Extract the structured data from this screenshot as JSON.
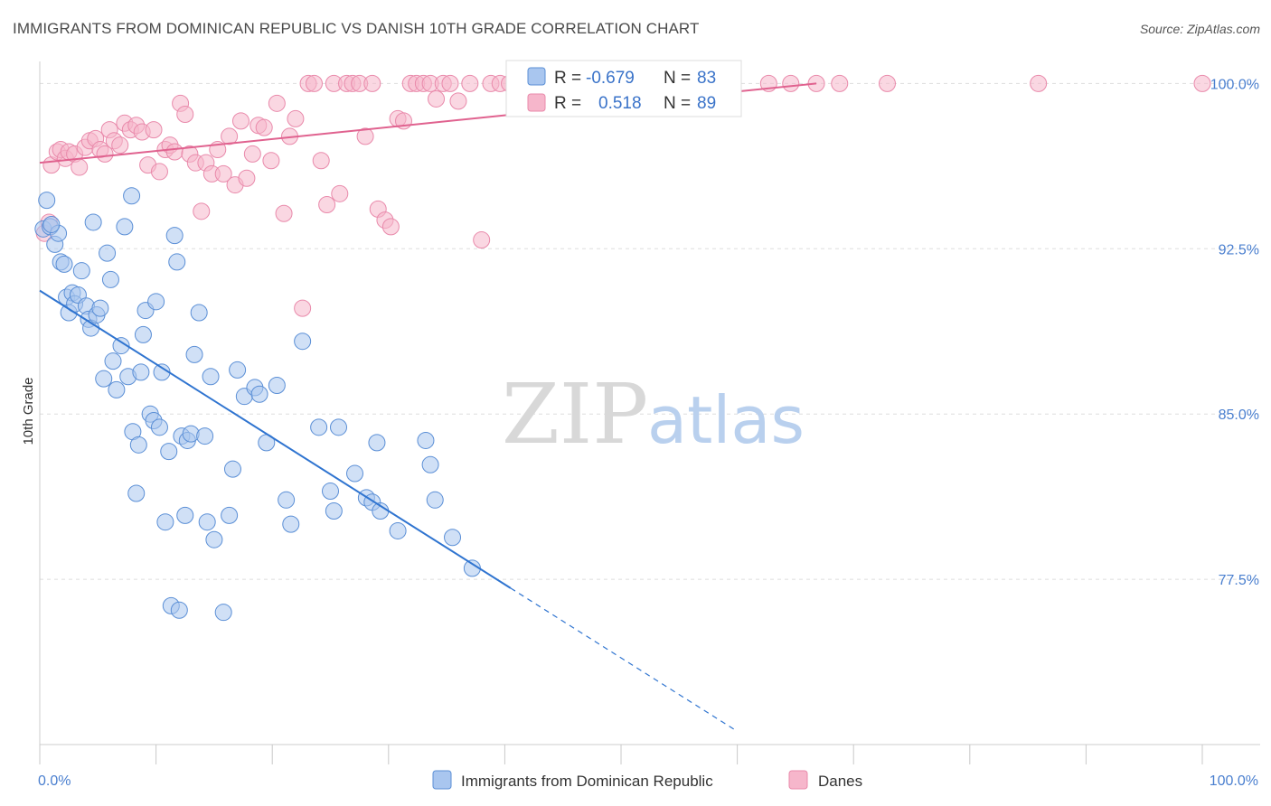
{
  "title": "IMMIGRANTS FROM DOMINICAN REPUBLIC VS DANISH 10TH GRADE CORRELATION CHART",
  "source": "Source: ZipAtlas.com",
  "watermark": {
    "zip": "ZIP",
    "atlas": "atlas"
  },
  "colors": {
    "blue_fill": "#a9c6ef",
    "blue_stroke": "#5b8fd6",
    "blue_line": "#2f74d0",
    "pink_fill": "#f6b6cb",
    "pink_stroke": "#e98aab",
    "pink_line": "#e0628f",
    "grid": "#dddddd",
    "tick_text": "#4a7fcf"
  },
  "legend": {
    "row1": {
      "r_label": "R =",
      "r_value": "-0.679",
      "n_label": "N =",
      "n_value": "83"
    },
    "row2": {
      "r_label": "R =",
      "r_value": "0.518",
      "n_label": "N =",
      "n_value": "89"
    }
  },
  "bottom_legend": [
    "Immigrants from Dominican Republic",
    "Danes"
  ],
  "chart_data": {
    "type": "scatter",
    "title": "IMMIGRANTS FROM DOMINICAN REPUBLIC VS DANISH 10TH GRADE CORRELATION CHART",
    "xlabel": "",
    "ylabel": "10th Grade",
    "x_tick_labels": [
      "0.0%",
      "100.0%"
    ],
    "y_tick_labels": [
      "100.0%",
      "92.5%",
      "85.0%",
      "77.5%"
    ],
    "y_ticks": [
      100.0,
      92.5,
      85.0,
      77.5
    ],
    "xlim": [
      0,
      100
    ],
    "ylim": [
      70.0,
      101.0
    ],
    "grid": true,
    "legend_position": "top-center",
    "series": [
      {
        "name": "Immigrants from Dominican Republic",
        "color": "#a9c6ef",
        "R": -0.679,
        "N": 83,
        "trend": {
          "x": [
            0,
            40.5
          ],
          "y": [
            90.6,
            77.1
          ],
          "dashed_to": [
            60,
            70.6
          ]
        },
        "points": [
          [
            0.3,
            93.4
          ],
          [
            0.6,
            94.7
          ],
          [
            0.9,
            93.5
          ],
          [
            1.3,
            92.7
          ],
          [
            1.6,
            93.2
          ],
          [
            1.8,
            91.9
          ],
          [
            2.1,
            91.8
          ],
          [
            2.3,
            90.3
          ],
          [
            2.5,
            89.6
          ],
          [
            2.8,
            90.5
          ],
          [
            3.0,
            90.0
          ],
          [
            3.3,
            90.4
          ],
          [
            3.6,
            91.5
          ],
          [
            4.0,
            89.9
          ],
          [
            4.2,
            89.3
          ],
          [
            4.4,
            88.9
          ],
          [
            4.6,
            93.7
          ],
          [
            4.9,
            89.5
          ],
          [
            5.2,
            89.8
          ],
          [
            5.5,
            86.6
          ],
          [
            5.8,
            92.3
          ],
          [
            6.1,
            91.1
          ],
          [
            6.3,
            87.4
          ],
          [
            6.6,
            86.1
          ],
          [
            7.0,
            88.1
          ],
          [
            7.3,
            93.5
          ],
          [
            7.6,
            86.7
          ],
          [
            7.9,
            94.9
          ],
          [
            8.0,
            84.2
          ],
          [
            8.3,
            81.4
          ],
          [
            8.5,
            83.6
          ],
          [
            8.7,
            86.9
          ],
          [
            8.9,
            88.6
          ],
          [
            9.1,
            89.7
          ],
          [
            9.5,
            85.0
          ],
          [
            9.8,
            84.7
          ],
          [
            10.0,
            90.1
          ],
          [
            10.3,
            84.4
          ],
          [
            10.5,
            86.9
          ],
          [
            10.8,
            80.1
          ],
          [
            11.1,
            83.3
          ],
          [
            11.3,
            76.3
          ],
          [
            11.6,
            93.1
          ],
          [
            11.8,
            91.9
          ],
          [
            12.0,
            76.1
          ],
          [
            12.2,
            84.0
          ],
          [
            12.5,
            80.4
          ],
          [
            12.7,
            83.8
          ],
          [
            13.0,
            84.1
          ],
          [
            13.3,
            87.7
          ],
          [
            13.7,
            89.6
          ],
          [
            14.2,
            84.0
          ],
          [
            14.4,
            80.1
          ],
          [
            14.7,
            86.7
          ],
          [
            15.0,
            79.3
          ],
          [
            15.8,
            76.0
          ],
          [
            16.3,
            80.4
          ],
          [
            16.6,
            82.5
          ],
          [
            17.0,
            87.0
          ],
          [
            17.6,
            85.8
          ],
          [
            18.5,
            86.2
          ],
          [
            18.9,
            85.9
          ],
          [
            19.5,
            83.7
          ],
          [
            20.4,
            86.3
          ],
          [
            21.2,
            81.1
          ],
          [
            21.6,
            80.0
          ],
          [
            22.6,
            88.3
          ],
          [
            24.0,
            84.4
          ],
          [
            25.0,
            81.5
          ],
          [
            25.3,
            80.6
          ],
          [
            25.7,
            84.4
          ],
          [
            27.1,
            82.3
          ],
          [
            28.1,
            81.2
          ],
          [
            28.6,
            81.0
          ],
          [
            29.0,
            83.7
          ],
          [
            29.3,
            80.6
          ],
          [
            30.8,
            79.7
          ],
          [
            33.2,
            83.8
          ],
          [
            33.6,
            82.7
          ],
          [
            34.0,
            81.1
          ],
          [
            35.5,
            79.4
          ],
          [
            37.2,
            78.0
          ],
          [
            1.0,
            93.6
          ]
        ]
      },
      {
        "name": "Danes",
        "color": "#f6b6cb",
        "R": 0.518,
        "N": 89,
        "trend": {
          "x": [
            0,
            66.8
          ],
          "y": [
            96.4,
            100.0
          ]
        },
        "points": [
          [
            0.4,
            93.2
          ],
          [
            0.8,
            93.7
          ],
          [
            1.0,
            96.3
          ],
          [
            1.5,
            96.9
          ],
          [
            1.8,
            97.0
          ],
          [
            2.2,
            96.6
          ],
          [
            2.5,
            96.9
          ],
          [
            3.0,
            96.8
          ],
          [
            3.4,
            96.2
          ],
          [
            3.9,
            97.1
          ],
          [
            4.3,
            97.4
          ],
          [
            4.8,
            97.5
          ],
          [
            5.2,
            97.0
          ],
          [
            5.6,
            96.8
          ],
          [
            6.0,
            97.9
          ],
          [
            6.4,
            97.4
          ],
          [
            6.9,
            97.2
          ],
          [
            7.3,
            98.2
          ],
          [
            7.8,
            97.9
          ],
          [
            8.3,
            98.1
          ],
          [
            8.8,
            97.8
          ],
          [
            9.3,
            96.3
          ],
          [
            9.8,
            97.9
          ],
          [
            10.3,
            96.0
          ],
          [
            10.8,
            97.0
          ],
          [
            11.2,
            97.2
          ],
          [
            11.6,
            96.9
          ],
          [
            12.1,
            99.1
          ],
          [
            12.5,
            98.6
          ],
          [
            12.9,
            96.8
          ],
          [
            13.4,
            96.4
          ],
          [
            13.9,
            94.2
          ],
          [
            14.3,
            96.4
          ],
          [
            14.8,
            95.9
          ],
          [
            15.3,
            97.0
          ],
          [
            15.8,
            95.9
          ],
          [
            16.3,
            97.6
          ],
          [
            16.8,
            95.4
          ],
          [
            17.3,
            98.3
          ],
          [
            17.8,
            95.7
          ],
          [
            18.3,
            96.8
          ],
          [
            18.8,
            98.1
          ],
          [
            19.3,
            98.0
          ],
          [
            19.9,
            96.5
          ],
          [
            20.4,
            99.1
          ],
          [
            21.0,
            94.1
          ],
          [
            21.5,
            97.6
          ],
          [
            22.0,
            98.4
          ],
          [
            22.6,
            89.8
          ],
          [
            23.1,
            100.0
          ],
          [
            23.6,
            100.0
          ],
          [
            24.2,
            96.5
          ],
          [
            24.7,
            94.5
          ],
          [
            25.3,
            100.0
          ],
          [
            25.8,
            95.0
          ],
          [
            26.4,
            100.0
          ],
          [
            26.9,
            100.0
          ],
          [
            27.5,
            100.0
          ],
          [
            28.0,
            97.6
          ],
          [
            28.6,
            100.0
          ],
          [
            29.1,
            94.3
          ],
          [
            29.7,
            93.8
          ],
          [
            30.2,
            93.5
          ],
          [
            30.8,
            98.4
          ],
          [
            31.3,
            98.3
          ],
          [
            31.9,
            100.0
          ],
          [
            32.4,
            100.0
          ],
          [
            33.0,
            100.0
          ],
          [
            33.6,
            100.0
          ],
          [
            34.1,
            99.3
          ],
          [
            34.7,
            100.0
          ],
          [
            35.3,
            100.0
          ],
          [
            36.0,
            99.2
          ],
          [
            37.0,
            100.0
          ],
          [
            38.0,
            92.9
          ],
          [
            38.8,
            100.0
          ],
          [
            39.6,
            100.0
          ],
          [
            40.4,
            100.0
          ],
          [
            41.2,
            100.0
          ],
          [
            45.0,
            100.0
          ],
          [
            47.3,
            100.0
          ],
          [
            49.6,
            100.0
          ],
          [
            62.7,
            100.0
          ],
          [
            64.6,
            100.0
          ],
          [
            66.8,
            100.0
          ],
          [
            68.8,
            100.0
          ],
          [
            72.9,
            100.0
          ],
          [
            85.9,
            100.0
          ],
          [
            100.0,
            100.0
          ]
        ]
      }
    ]
  }
}
